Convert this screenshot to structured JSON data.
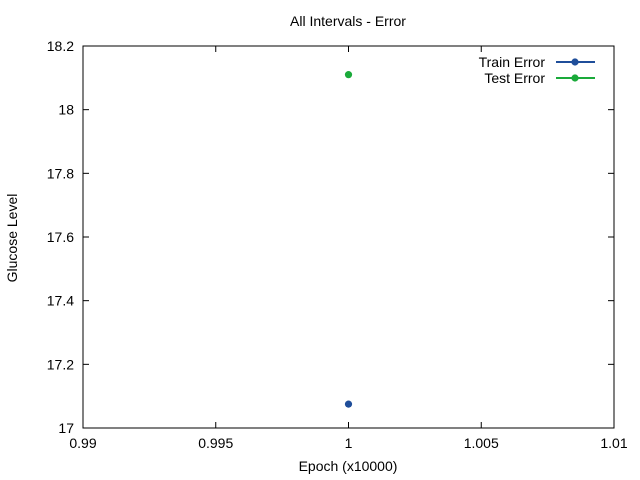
{
  "chart_data": {
    "type": "scatter",
    "title": "All Intervals - Error",
    "xlabel": "Epoch (x10000)",
    "ylabel": "Glucose Level",
    "xlim": [
      0.99,
      1.01
    ],
    "ylim": [
      17.0,
      18.2
    ],
    "x_ticks": [
      "0.99",
      "0.995",
      "1",
      "1.005",
      "1.01"
    ],
    "y_ticks": [
      "17",
      "17.2",
      "17.4",
      "17.6",
      "17.8",
      "18",
      "18.2"
    ],
    "grid": false,
    "legend_position": "top-right",
    "series": [
      {
        "name": "Train Error",
        "color": "#1f4e9a",
        "points": [
          {
            "x": 1.0,
            "y": 17.075
          }
        ]
      },
      {
        "name": "Test Error",
        "color": "#1aaa3a",
        "points": [
          {
            "x": 1.0,
            "y": 18.11
          }
        ]
      }
    ]
  }
}
